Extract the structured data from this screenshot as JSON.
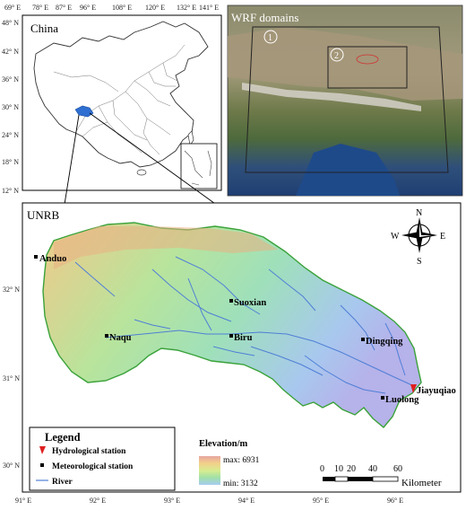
{
  "china_panel": {
    "title": "China",
    "top_ticks": [
      "69° E",
      "78° E",
      "87° E",
      "96° E",
      "108° E",
      "120° E",
      "132° E",
      "141° E"
    ],
    "left_ticks": [
      "48° N",
      "42° N",
      "36° N",
      "30° N",
      "24° N",
      "18° N",
      "12° N"
    ]
  },
  "wrf_panel": {
    "title": "WRF domains",
    "domain_labels": [
      "1",
      "2"
    ]
  },
  "unrb_panel": {
    "title": "UNRB",
    "bottom_ticks": [
      "91° E",
      "92° E",
      "93° E",
      "94° E",
      "95° E",
      "96° E"
    ],
    "left_ticks": [
      "32° N",
      "31° N",
      "30° N"
    ],
    "stations": [
      {
        "name": "Anduo",
        "type": "meteorological"
      },
      {
        "name": "Suoxian",
        "type": "meteorological"
      },
      {
        "name": "Naqu",
        "type": "meteorological"
      },
      {
        "name": "Biru",
        "type": "meteorological"
      },
      {
        "name": "Dingqing",
        "type": "meteorological"
      },
      {
        "name": "Jiayuqiao",
        "type": "hydrological"
      },
      {
        "name": "Luolong",
        "type": "meteorological"
      }
    ],
    "compass": {
      "n": "N",
      "s": "S",
      "e": "E",
      "w": "W"
    },
    "legend": {
      "title": "Legend",
      "items": [
        "Hydrological station",
        "Meteorological station",
        "River"
      ]
    },
    "elevation": {
      "title": "Elevation/m",
      "max_label": "max: 6931",
      "min_label": "min: 3132",
      "colors": [
        "#e8a6a0",
        "#f2d08a",
        "#d8ec90",
        "#9fe0a8",
        "#a6ccf2"
      ]
    },
    "scale": {
      "ticks": [
        "0",
        "10",
        "20",
        "40",
        "60"
      ],
      "unit": "Kilometer"
    }
  }
}
